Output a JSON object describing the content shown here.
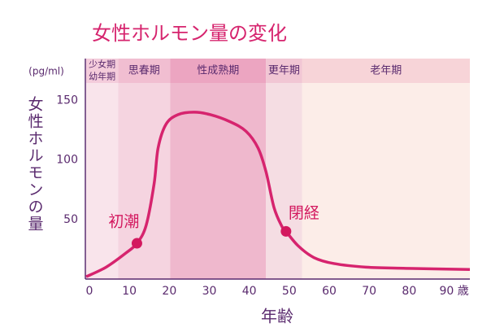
{
  "chart_data": {
    "type": "line",
    "title": "女性ホルモン量の変化",
    "y_label": "女性ホルモンの量",
    "y_unit": "(pg/ml)",
    "x_label": "年齢",
    "xlim": [
      0,
      96
    ],
    "ylim": [
      0,
      185
    ],
    "xticks": [
      0,
      10,
      20,
      30,
      40,
      50,
      60,
      70,
      80,
      {
        "value": 90,
        "label": "90 歳"
      }
    ],
    "yticks": [
      50,
      100,
      150
    ],
    "bands": [
      {
        "label": [
          "少女期",
          "幼年期"
        ],
        "start": 0,
        "end": 8,
        "color": "#f9e4eb"
      },
      {
        "label": [
          "思春期"
        ],
        "start": 8,
        "end": 21,
        "color": "#f5d4e0"
      },
      {
        "label": [
          "性成熟期"
        ],
        "start": 21,
        "end": 45,
        "color": "#efb8cd"
      },
      {
        "label": [
          "更年期"
        ],
        "start": 45,
        "end": 54,
        "color": "#f5dde3"
      },
      {
        "label": [
          "老年期"
        ],
        "start": 54,
        "end": 96,
        "color": "#fcede8"
      }
    ],
    "series": [
      {
        "color": "#d6246e",
        "x": [
          0,
          5,
          10,
          12.7,
          15,
          17,
          18,
          20,
          23,
          27,
          31,
          36,
          40,
          43,
          45,
          47,
          49,
          50,
          53,
          57,
          62,
          70,
          80,
          96
        ],
        "values": [
          2,
          10,
          22,
          30,
          45,
          80,
          110,
          130,
          138,
          140,
          138,
          132,
          124,
          110,
          90,
          60,
          44,
          40,
          28,
          18,
          13,
          10,
          9,
          8
        ]
      }
    ],
    "annotations": [
      {
        "label": "初潮",
        "x": 12.7,
        "y": 30,
        "color": "#d3195f"
      },
      {
        "label": "閉経",
        "x": 50,
        "y": 40,
        "color": "#d3195f"
      }
    ]
  }
}
